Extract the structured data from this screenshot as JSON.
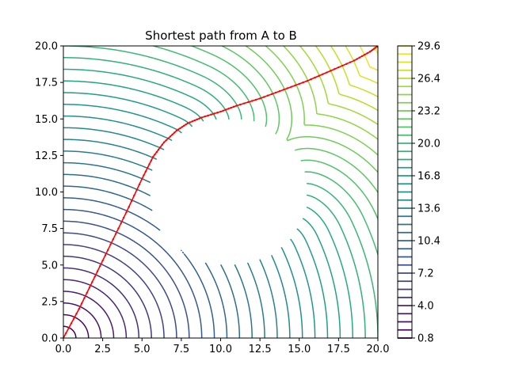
{
  "chart_data": {
    "type": "contour",
    "title": "Shortest path from A to B",
    "xlabel": "",
    "ylabel": "",
    "xlim": [
      0,
      20
    ],
    "ylim": [
      0,
      20
    ],
    "x_ticks": [
      "0.0",
      "2.5",
      "5.0",
      "7.5",
      "10.0",
      "12.5",
      "15.0",
      "17.5",
      "20.0"
    ],
    "y_ticks": [
      "0.0",
      "2.5",
      "5.0",
      "7.5",
      "10.0",
      "12.5",
      "15.0",
      "17.5",
      "20.0"
    ],
    "field": "distance from A (0,0) avoiding circular obstacle",
    "obstacle": {
      "center": [
        10.5,
        10
      ],
      "radius": 5.0
    },
    "contour_levels": {
      "start": 0.8,
      "stop": 29.6,
      "step": 0.8
    },
    "colorbar": {
      "colormap": "viridis",
      "range": [
        0.8,
        29.6
      ],
      "tick_labels": [
        "0.8",
        "4.0",
        "7.2",
        "10.4",
        "13.6",
        "16.8",
        "20.0",
        "23.2",
        "26.4",
        "29.6"
      ],
      "tick_values": [
        0.8,
        4.0,
        7.2,
        10.4,
        13.6,
        16.8,
        20.0,
        23.2,
        26.4,
        29.6
      ]
    },
    "path": {
      "color": "#ff0000",
      "marker": "point",
      "points": [
        [
          0.0,
          0.0
        ],
        [
          1.0,
          2.0
        ],
        [
          2.0,
          4.2
        ],
        [
          3.0,
          6.4
        ],
        [
          4.0,
          8.6
        ],
        [
          5.0,
          10.9
        ],
        [
          5.7,
          12.4
        ],
        [
          6.4,
          13.4
        ],
        [
          7.2,
          14.2
        ],
        [
          7.9,
          14.7
        ],
        [
          8.8,
          15.1
        ],
        [
          10.0,
          15.5
        ],
        [
          11.0,
          15.9
        ],
        [
          12.5,
          16.4
        ],
        [
          14.0,
          17.0
        ],
        [
          15.5,
          17.6
        ],
        [
          17.0,
          18.3
        ],
        [
          18.5,
          19.0
        ],
        [
          19.5,
          19.6
        ],
        [
          20.0,
          20.0
        ]
      ]
    }
  },
  "colors": {
    "path": "#ff0000",
    "axes": "#000000",
    "background": "#ffffff"
  }
}
